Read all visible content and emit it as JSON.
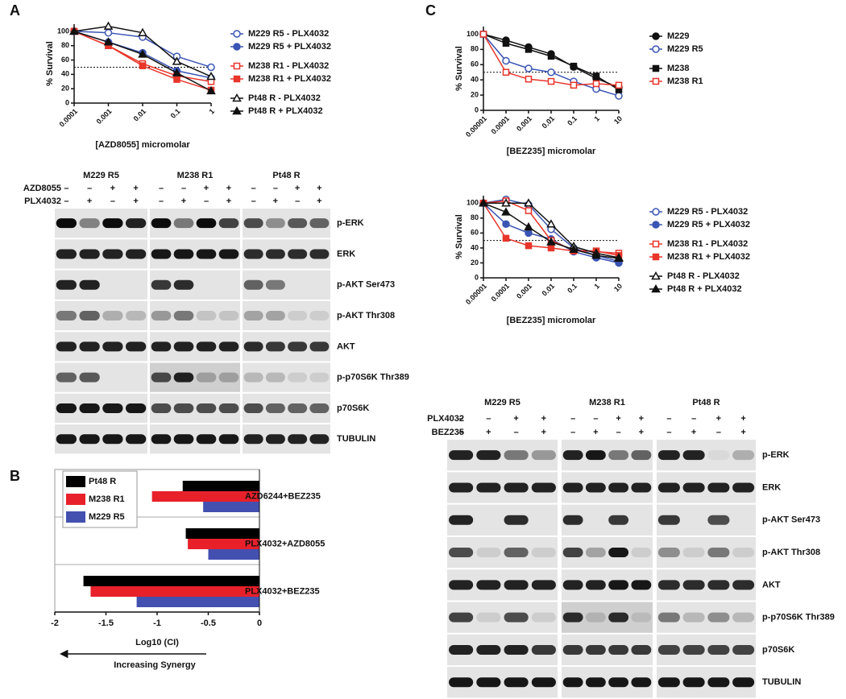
{
  "panel_labels": [
    "A",
    "B",
    "C"
  ],
  "chart_data": [
    {
      "type": "line",
      "xscale": "log",
      "xlabel": "[AZD8055] micromolar",
      "ylabel": "% Survival",
      "x": [
        0.0001,
        0.001,
        0.01,
        0.1,
        1
      ],
      "xlim": [
        0.0001,
        1
      ],
      "xticks": [
        0.0001,
        0.001,
        0.01,
        0.1,
        1
      ],
      "ylim": [
        0,
        110
      ],
      "yticks": [
        0,
        20,
        40,
        60,
        80,
        100
      ],
      "reference_line": 50,
      "series": [
        {
          "name": "M229 R5 - PLX4032",
          "color": "#3a55b4",
          "marker": "circle",
          "filled": false,
          "values": [
            100,
            98,
            92,
            65,
            50
          ]
        },
        {
          "name": "M229 R5 + PLX4032",
          "color": "#3a55b4",
          "marker": "circle",
          "filled": true,
          "values": [
            100,
            85,
            70,
            45,
            35
          ]
        },
        {
          "name": "M238 R1 - PLX4032",
          "color": "#e8352a",
          "marker": "square",
          "filled": false,
          "values": [
            100,
            80,
            55,
            38,
            30
          ]
        },
        {
          "name": "M238 R1 + PLX4032",
          "color": "#e8352a",
          "marker": "square",
          "filled": true,
          "values": [
            100,
            80,
            52,
            33,
            18
          ]
        },
        {
          "name": "Pt48 R - PLX4032",
          "color": "#111111",
          "marker": "triangle",
          "filled": false,
          "values": [
            100,
            107,
            98,
            58,
            37
          ]
        },
        {
          "name": "Pt48 R + PLX4032",
          "color": "#111111",
          "marker": "triangle",
          "filled": true,
          "values": [
            100,
            85,
            68,
            42,
            17
          ]
        }
      ]
    },
    {
      "type": "barh",
      "xlabel": "Log10 (CI)",
      "annotation": "Increasing Synergy",
      "categories": [
        "AZD6244+BEZ235",
        "PLX4032+AZD8055",
        "PLX4032+BEZ235"
      ],
      "xlim": [
        -2,
        0
      ],
      "xticks": [
        -2,
        -1.5,
        -1,
        -0.5,
        0
      ],
      "series": [
        {
          "name": "Pt48 R",
          "color": "#000000",
          "values": [
            -0.75,
            -0.72,
            -1.72
          ]
        },
        {
          "name": "M238 R1",
          "color": "#e8202a",
          "values": [
            -1.05,
            -0.7,
            -1.65
          ]
        },
        {
          "name": "M229 R5",
          "color": "#4350b0",
          "values": [
            -0.55,
            -0.5,
            -1.2
          ]
        }
      ]
    },
    {
      "type": "line",
      "xscale": "log",
      "xlabel": "[BEZ235] micromolar",
      "ylabel": "% Survival",
      "x": [
        1e-05,
        0.0001,
        0.001,
        0.01,
        0.1,
        1,
        10
      ],
      "xlim": [
        1e-05,
        10
      ],
      "xticks": [
        1e-05,
        0.0001,
        0.001,
        0.01,
        0.1,
        1,
        10
      ],
      "ylim": [
        0,
        110
      ],
      "yticks": [
        0,
        20,
        40,
        60,
        80,
        100
      ],
      "reference_line": 50,
      "series": [
        {
          "name": "M229",
          "color": "#111111",
          "marker": "circle",
          "filled": true,
          "values": [
            100,
            92,
            83,
            74,
            57,
            42,
            30
          ]
        },
        {
          "name": "M229 R5",
          "color": "#3a55b4",
          "marker": "circle",
          "filled": false,
          "values": [
            100,
            65,
            55,
            50,
            38,
            28,
            19
          ]
        },
        {
          "name": "M238",
          "color": "#111111",
          "marker": "square",
          "filled": true,
          "values": [
            100,
            88,
            80,
            71,
            58,
            45,
            27
          ]
        },
        {
          "name": "M238 R1",
          "color": "#e8352a",
          "marker": "square",
          "filled": false,
          "values": [
            100,
            50,
            41,
            38,
            33,
            35,
            33
          ]
        }
      ]
    },
    {
      "type": "line",
      "xscale": "log",
      "xlabel": "[BEZ235] micromolar",
      "ylabel": "% Survival",
      "x": [
        1e-05,
        0.0001,
        0.001,
        0.01,
        0.1,
        1,
        10
      ],
      "xlim": [
        1e-05,
        10
      ],
      "xticks": [
        1e-05,
        0.0001,
        0.001,
        0.01,
        0.1,
        1,
        10
      ],
      "ylim": [
        0,
        110
      ],
      "yticks": [
        0,
        20,
        40,
        60,
        80,
        100
      ],
      "reference_line": 50,
      "series": [
        {
          "name": "M229 R5 - PLX4032",
          "color": "#3a55b4",
          "marker": "circle",
          "filled": false,
          "values": [
            100,
            105,
            98,
            65,
            40,
            30,
            22
          ]
        },
        {
          "name": "M229 R5 + PLX4032",
          "color": "#3a55b4",
          "marker": "circle",
          "filled": true,
          "values": [
            100,
            72,
            60,
            52,
            35,
            27,
            20
          ]
        },
        {
          "name": "M238 R1 - PLX4032",
          "color": "#e8352a",
          "marker": "square",
          "filled": false,
          "values": [
            100,
            103,
            90,
            50,
            37,
            35,
            33
          ]
        },
        {
          "name": "M238 R1 + PLX4032",
          "color": "#e8352a",
          "marker": "square",
          "filled": true,
          "values": [
            100,
            53,
            43,
            40,
            36,
            36,
            30
          ]
        },
        {
          "name": "Pt48 R - PLX4032",
          "color": "#111111",
          "marker": "triangle",
          "filled": false,
          "values": [
            100,
            100,
            100,
            72,
            42,
            33,
            27
          ]
        },
        {
          "name": "Pt48 R + PLX4032",
          "color": "#111111",
          "marker": "triangle",
          "filled": true,
          "values": [
            100,
            88,
            68,
            48,
            38,
            30,
            26
          ]
        }
      ]
    }
  ],
  "blots": [
    {
      "cell_lines": [
        "M229 R5",
        "M238 R1",
        "Pt48 R"
      ],
      "treatments": [
        {
          "name": "AZD8055",
          "signs": [
            "–",
            "–",
            "+",
            "+"
          ]
        },
        {
          "name": "PLX4032",
          "signs": [
            "–",
            "+",
            "–",
            "+"
          ]
        }
      ],
      "bands": [
        "p-ERK",
        "ERK",
        "p-AKT Ser473",
        "p-AKT Thr308",
        "AKT",
        "p-p70S6K Thr389",
        "p70S6K",
        "TUBULIN"
      ]
    },
    {
      "cell_lines": [
        "M229 R5",
        "M238 R1",
        "Pt48 R"
      ],
      "treatments": [
        {
          "name": "PLX4032",
          "signs": [
            "–",
            "–",
            "+",
            "+"
          ]
        },
        {
          "name": "BEZ235",
          "signs": [
            "–",
            "+",
            "–",
            "+"
          ]
        }
      ],
      "bands": [
        "p-ERK",
        "ERK",
        "p-AKT Ser473",
        "p-AKT Thr308",
        "AKT",
        "p-p70S6K Thr389",
        "p70S6K",
        "TUBULIN"
      ]
    }
  ]
}
